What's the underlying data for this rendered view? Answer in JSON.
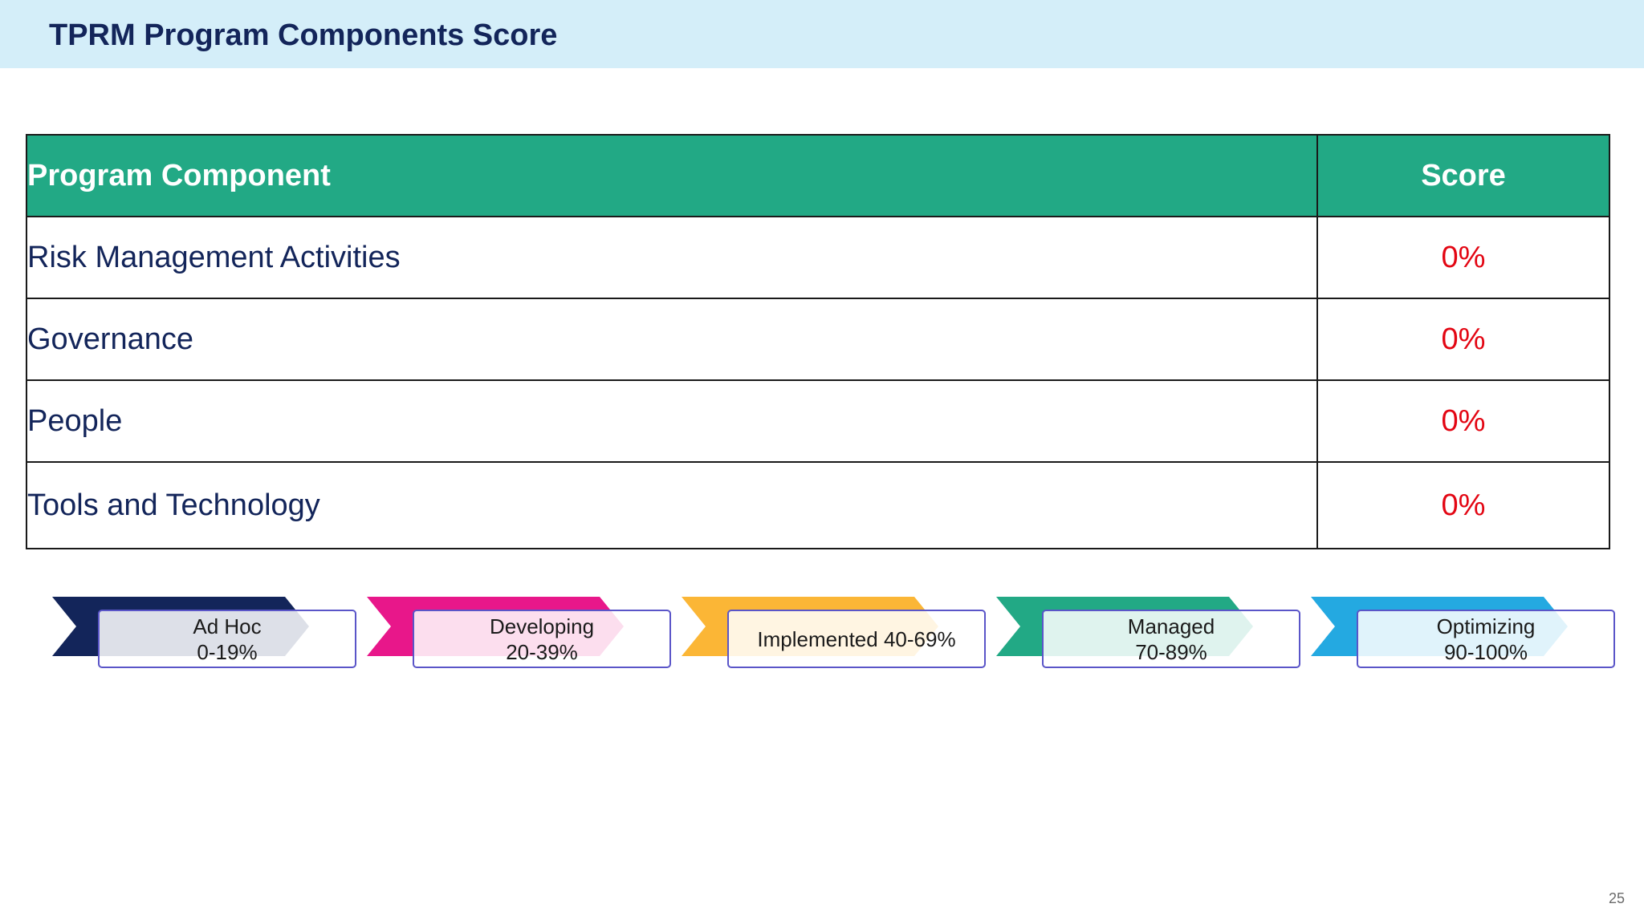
{
  "slide": {
    "title": "TPRM Program Components Score",
    "page_number": "25"
  },
  "table": {
    "headers": {
      "component": "Program Component",
      "score": "Score"
    },
    "rows": [
      {
        "component": "Risk Management Activities",
        "score": "0%"
      },
      {
        "component": "Governance",
        "score": "0%"
      },
      {
        "component": "People",
        "score": "0%"
      },
      {
        "component": "Tools and Technology",
        "score": "0%"
      }
    ],
    "colors": {
      "header_bg": "#22a985",
      "score_text": "#e30613",
      "component_text": "#13255a"
    }
  },
  "legend": [
    {
      "line1": "Ad Hoc",
      "line2": "0-19%",
      "color": "#13255a"
    },
    {
      "line1": "Developing",
      "line2": "20-39%",
      "color": "#e8178a"
    },
    {
      "line1": "Implemented 40-69%",
      "line2": "",
      "color": "#fbb636"
    },
    {
      "line1": "Managed",
      "line2": "70-89%",
      "color": "#22a985"
    },
    {
      "line1": "Optimizing",
      "line2": "90-100%",
      "color": "#24a9e1"
    }
  ]
}
